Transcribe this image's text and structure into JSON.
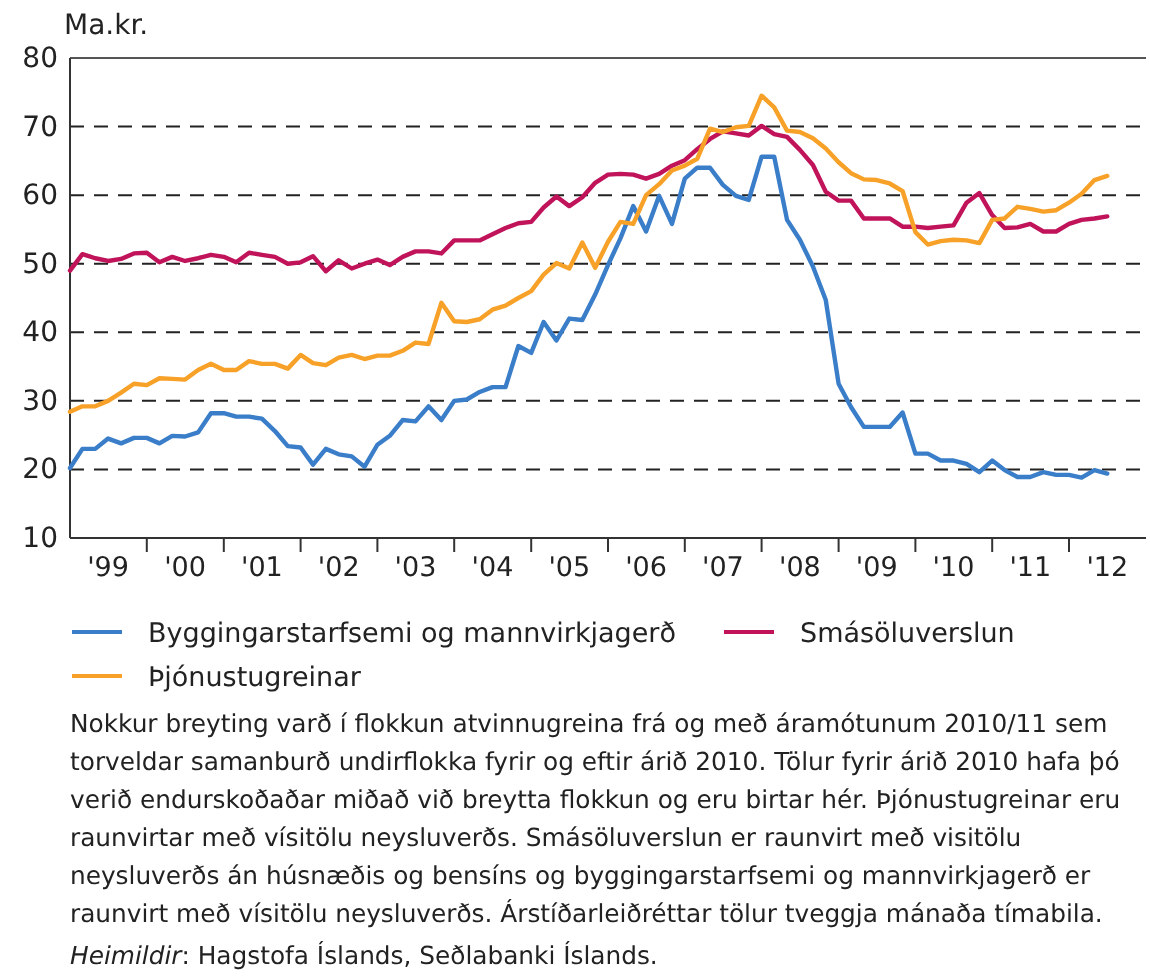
{
  "chart_data": {
    "type": "line",
    "ylabel": "Ma.kr.",
    "x": [
      "1999-01",
      "1999-03",
      "1999-05",
      "1999-07",
      "1999-09",
      "1999-11",
      "2000-01",
      "2000-03",
      "2000-05",
      "2000-07",
      "2000-09",
      "2000-11",
      "2001-01",
      "2001-03",
      "2001-05",
      "2001-07",
      "2001-09",
      "2001-11",
      "2002-01",
      "2002-03",
      "2002-05",
      "2002-07",
      "2002-09",
      "2002-11",
      "2003-01",
      "2003-03",
      "2003-05",
      "2003-07",
      "2003-09",
      "2003-11",
      "2004-01",
      "2004-03",
      "2004-05",
      "2004-07",
      "2004-09",
      "2004-11",
      "2005-01",
      "2005-03",
      "2005-05",
      "2005-07",
      "2005-09",
      "2005-11",
      "2006-01",
      "2006-03",
      "2006-05",
      "2006-07",
      "2006-09",
      "2006-11",
      "2007-01",
      "2007-03",
      "2007-05",
      "2007-07",
      "2007-09",
      "2007-11",
      "2008-01",
      "2008-03",
      "2008-05",
      "2008-07",
      "2008-09",
      "2008-11",
      "2009-01",
      "2009-03",
      "2009-05",
      "2009-07",
      "2009-09",
      "2009-11",
      "2010-01",
      "2010-03",
      "2010-05",
      "2010-07",
      "2010-09",
      "2010-11",
      "2011-01",
      "2011-03",
      "2011-05",
      "2011-07",
      "2011-09",
      "2011-11",
      "2012-01",
      "2012-03",
      "2012-05",
      "2012-07"
    ],
    "series": [
      {
        "name": "Byggingarstarfsemi og mannvirkjagerð",
        "color": "#3a7dc9",
        "values": [
          20.2,
          23,
          23,
          24.5,
          23.8,
          24.6,
          24.6,
          23.8,
          24.9,
          24.8,
          25.4,
          28.2,
          28.2,
          27.7,
          27.7,
          27.4,
          25.6,
          23.4,
          23.2,
          20.7,
          23,
          22.2,
          21.9,
          20.4,
          23.6,
          24.9,
          27.2,
          27,
          29.2,
          27.2,
          30,
          30.2,
          31.3,
          32,
          32,
          38,
          37,
          41.5,
          38.8,
          42,
          41.8,
          45.5,
          49.8,
          53.7,
          58.4,
          54.7,
          59.9,
          55.8,
          62.4,
          64,
          64,
          61.5,
          59.9,
          59.3,
          65.6,
          65.6,
          56.4,
          53.5,
          49.6,
          44.7,
          32.5,
          29.1,
          26.2,
          26.2,
          26.2,
          28.3,
          22.3,
          22.3,
          21.3,
          21.3,
          20.8,
          19.6,
          21.3,
          19.9,
          18.9,
          18.9,
          19.6,
          19.2,
          19.2,
          18.8,
          19.9,
          19.4
        ]
      },
      {
        "name": "Smásöluverslun",
        "color": "#c0135a",
        "values": [
          49,
          51.4,
          50.8,
          50.4,
          50.7,
          51.5,
          51.6,
          50.2,
          51,
          50.4,
          50.8,
          51.3,
          51,
          50.2,
          51.6,
          51.3,
          51,
          50,
          50.2,
          51.1,
          48.9,
          50.5,
          49.3,
          50,
          50.6,
          49.8,
          51,
          51.8,
          51.8,
          51.5,
          53.4,
          53.4,
          53.4,
          54.3,
          55.2,
          55.9,
          56.1,
          58.2,
          59.8,
          58.4,
          59.7,
          61.8,
          63,
          63.1,
          63,
          62.4,
          63.1,
          64.3,
          65.1,
          66.7,
          68.2,
          69.3,
          69,
          68.7,
          70.1,
          68.9,
          68.5,
          66.6,
          64.4,
          60.5,
          59.2,
          59.2,
          56.6,
          56.6,
          56.6,
          55.4,
          55.4,
          55.2,
          55.4,
          55.6,
          58.9,
          60.3,
          57.1,
          55.2,
          55.3,
          55.8,
          54.7,
          54.7,
          55.8,
          56.4,
          56.6,
          56.9
        ]
      },
      {
        "name": "Þjónustugreinar",
        "color": "#f7a128",
        "values": [
          28.4,
          29.2,
          29.2,
          30,
          31.2,
          32.5,
          32.3,
          33.3,
          33.2,
          33.1,
          34.5,
          35.4,
          34.5,
          34.5,
          35.8,
          35.4,
          35.4,
          34.7,
          36.7,
          35.5,
          35.2,
          36.3,
          36.7,
          36.1,
          36.6,
          36.6,
          37.3,
          38.5,
          38.3,
          44.3,
          41.6,
          41.5,
          41.9,
          43.3,
          43.9,
          45,
          46,
          48.4,
          50.1,
          49.3,
          53.1,
          49.4,
          53.2,
          56.1,
          55.8,
          60,
          61.6,
          63.6,
          64.3,
          65.3,
          69.7,
          69.2,
          69.9,
          70.1,
          74.5,
          72.8,
          69.4,
          69.2,
          68.3,
          66.8,
          64.8,
          63.2,
          62.3,
          62.2,
          61.7,
          60.6,
          54.6,
          52.8,
          53.3,
          53.5,
          53.4,
          53,
          56.4,
          56.6,
          58.3,
          58,
          57.6,
          57.8,
          58.9,
          60.2,
          62.2,
          62.8
        ]
      }
    ],
    "xlim": [
      "1999-01",
      "2013-01"
    ],
    "xticks": [
      {
        "value": "1999-07",
        "label": "'99"
      },
      {
        "value": "2000",
        "label": null
      },
      {
        "value": "2000-07",
        "label": "'00"
      },
      {
        "value": "2001",
        "label": null
      },
      {
        "value": "2001-07",
        "label": "'01"
      },
      {
        "value": "2002",
        "label": null
      },
      {
        "value": "2002-07",
        "label": "'02"
      },
      {
        "value": "2003",
        "label": null
      },
      {
        "value": "2003-07",
        "label": "'03"
      },
      {
        "value": "2004",
        "label": null
      },
      {
        "value": "2004-07",
        "label": "'04"
      },
      {
        "value": "2005",
        "label": null
      },
      {
        "value": "2005-07",
        "label": "'05"
      },
      {
        "value": "2006",
        "label": null
      },
      {
        "value": "2006-07",
        "label": "'06"
      },
      {
        "value": "2007",
        "label": null
      },
      {
        "value": "2007-07",
        "label": "'07"
      },
      {
        "value": "2008",
        "label": null
      },
      {
        "value": "2008-07",
        "label": "'08"
      },
      {
        "value": "2009",
        "label": null
      },
      {
        "value": "2009-07",
        "label": "'09"
      },
      {
        "value": "2010",
        "label": null
      },
      {
        "value": "2010-07",
        "label": "'10"
      },
      {
        "value": "2011",
        "label": null
      },
      {
        "value": "2011-07",
        "label": "'11"
      },
      {
        "value": "2012",
        "label": null
      },
      {
        "value": "2012-07",
        "label": "'12"
      }
    ],
    "ylim": [
      10,
      80
    ],
    "yticks": [
      10,
      20,
      30,
      40,
      50,
      60,
      70,
      80
    ],
    "grid": "y",
    "line_style": "solid",
    "legend": "bottom",
    "annotations": [
      "Nokkur breyting varð í flokkun atvinnugreina frá og með áramótunum 2010/11 sem torveldar samanburð undirflokka fyrir og eftir árið 2010. Tölur fyrir árið 2010 hafa þó verið endurskoðaðar miðað við breytta flokkun og eru birtar hér. Þjónustugreinar eru raunvirtar með vísitölu neysluverðs. Smásöluverslun er raunvirt með visitölu neysluverðs án húsnæðis og bensíns og byggingarstarfsemi og mannvirkjagerð er raunvirt með vísitölu neysluverðs. Árstíðarleiðréttar tölur tveggja mánaða tímabila.",
      "Heimildir: Hagstofa Íslands, Seðlabanki Íslands."
    ]
  }
}
